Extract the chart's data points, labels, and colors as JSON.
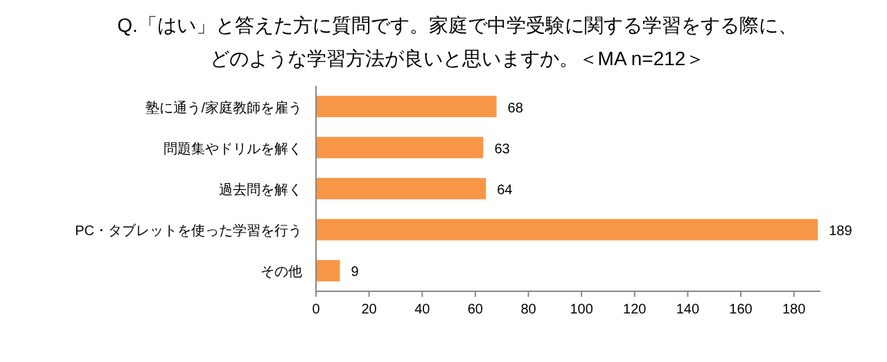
{
  "chart_data": {
    "type": "bar",
    "orientation": "horizontal",
    "title": "Q.「はい」と答えた方に質問です。家庭で中学受験に関する学習をする際に、どのような学習方法が良いと思いますか。＜MA n=212＞",
    "categories": [
      "塾に通う/家庭教師を雇う",
      "問題集やドリルを解く",
      "過去問を解く",
      "PC・タブレットを使った学習を行う",
      "その他"
    ],
    "values": [
      68,
      63,
      64,
      189,
      9
    ],
    "color": "#f79646",
    "xlim": [
      0,
      190
    ],
    "xticks": [
      0,
      20,
      40,
      60,
      80,
      100,
      120,
      140,
      160,
      180
    ],
    "data_labels": true
  }
}
